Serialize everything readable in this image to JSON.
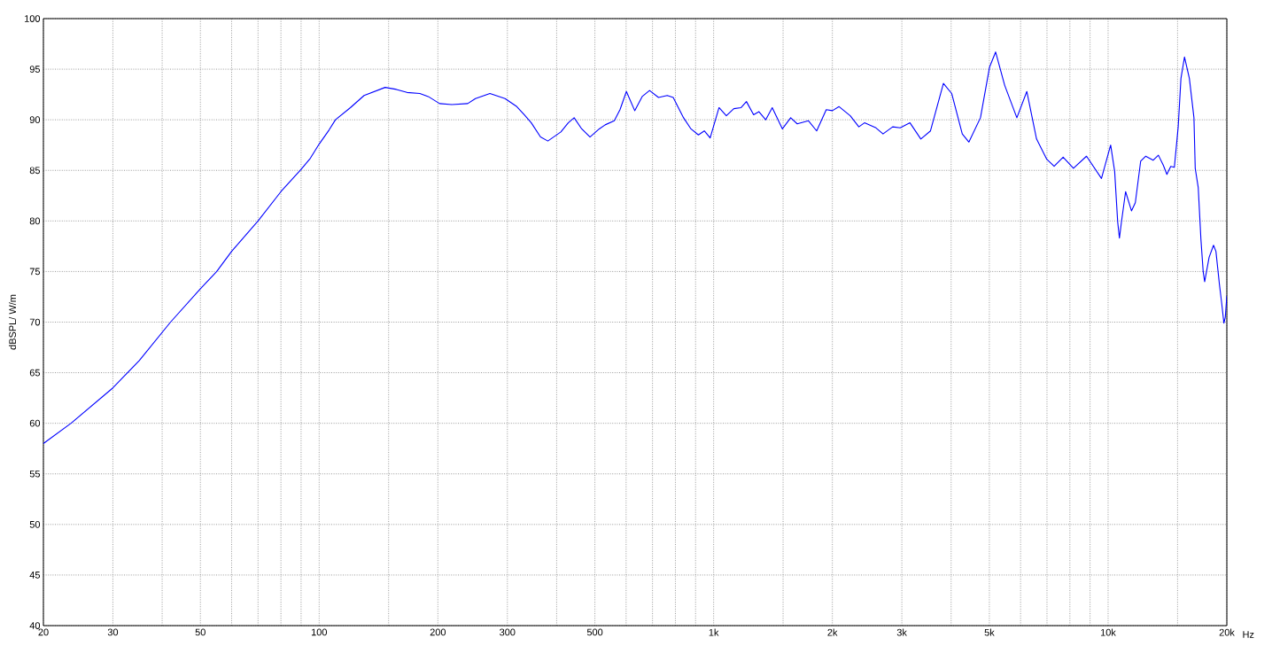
{
  "chart_data": {
    "type": "line",
    "xlabel": "Hz",
    "ylabel": "dBSPL/ W/m",
    "x": [
      20,
      23.5,
      30,
      35,
      42,
      50,
      55,
      60,
      70,
      80,
      90,
      95,
      100,
      106,
      110,
      120,
      130,
      147,
      157,
      167,
      180,
      189,
      202,
      217,
      238,
      249,
      271,
      296,
      317,
      331,
      345,
      364,
      380,
      410,
      428,
      443,
      463,
      486,
      513,
      531,
      560,
      579,
      601,
      631,
      659,
      688,
      725,
      763,
      790,
      839,
      876,
      915,
      947,
      980,
      1032,
      1077,
      1125,
      1174,
      1211,
      1263,
      1303,
      1355,
      1408,
      1494,
      1568,
      1629,
      1740,
      1825,
      1930,
      2000,
      2080,
      2220,
      2334,
      2412,
      2580,
      2688,
      2844,
      2971,
      3146,
      3352,
      3546,
      3824,
      4013,
      4269,
      4438,
      4747,
      5005,
      5186,
      5469,
      5871,
      6222,
      6586,
      6990,
      7298,
      7693,
      8169,
      8816,
      9620,
      10150,
      10390,
      10575,
      10683,
      10810,
      11075,
      11462,
      11722,
      12092,
      12449,
      13004,
      13413,
      13804,
      14093,
      14417,
      14721,
      15056,
      15300,
      15620,
      16070,
      16506,
      16630,
      16925,
      17190,
      17420,
      17572,
      18034,
      18506,
      18768,
      19158,
      19418,
      19660,
      19825,
      20000
    ],
    "series": [
      {
        "color": "#0000ff",
        "values": [
          58.0,
          60.0,
          63.5,
          66.2,
          70.0,
          73.3,
          75.0,
          77.0,
          80.0,
          82.9,
          85.1,
          86.2,
          87.6,
          89.0,
          90.0,
          91.2,
          92.4,
          93.2,
          93.0,
          92.7,
          92.6,
          92.3,
          91.6,
          91.5,
          91.6,
          92.1,
          92.6,
          92.1,
          91.3,
          90.5,
          89.7,
          88.3,
          87.9,
          88.8,
          89.7,
          90.2,
          89.1,
          88.3,
          89.1,
          89.5,
          89.9,
          91.0,
          92.8,
          90.9,
          92.3,
          92.9,
          92.2,
          92.4,
          92.2,
          90.2,
          89.1,
          88.5,
          88.9,
          88.2,
          91.2,
          90.4,
          91.1,
          91.2,
          91.8,
          90.5,
          90.8,
          90.0,
          91.2,
          89.1,
          90.2,
          89.6,
          89.9,
          88.9,
          91.0,
          90.9,
          91.3,
          90.4,
          89.3,
          89.7,
          89.2,
          88.6,
          89.3,
          89.2,
          89.7,
          88.1,
          88.9,
          93.6,
          92.6,
          88.6,
          87.8,
          90.2,
          95.2,
          96.7,
          93.4,
          90.2,
          92.8,
          88.1,
          86.1,
          85.4,
          86.3,
          85.2,
          86.4,
          84.2,
          87.5,
          84.9,
          79.9,
          78.3,
          79.9,
          82.9,
          81.0,
          81.8,
          85.9,
          86.4,
          86.0,
          86.5,
          85.5,
          84.6,
          85.4,
          85.3,
          89.3,
          94.1,
          96.2,
          94.1,
          90.2,
          85.2,
          83.3,
          78.2,
          75.0,
          74.0,
          76.4,
          77.6,
          77.0,
          73.7,
          71.8,
          69.9,
          70.5,
          72.6
        ]
      }
    ],
    "xlim": [
      20,
      20000
    ],
    "ylim": [
      40,
      100
    ],
    "xticks": [
      20,
      30,
      {
        "value": 40,
        "label": null
      },
      50,
      {
        "value": 60,
        "label": null
      },
      {
        "value": 70,
        "label": null
      },
      {
        "value": 80,
        "label": null
      },
      {
        "value": 90,
        "label": null
      },
      100,
      {
        "value": 150,
        "label": null
      },
      200,
      300,
      {
        "value": 400,
        "label": null
      },
      500,
      {
        "value": 600,
        "label": null
      },
      {
        "value": 700,
        "label": null
      },
      {
        "value": 800,
        "label": null
      },
      {
        "value": 900,
        "label": null
      },
      {
        "value": 1000,
        "label": "1k"
      },
      {
        "value": 1500,
        "label": null
      },
      {
        "value": 2000,
        "label": "2k"
      },
      {
        "value": 3000,
        "label": "3k"
      },
      {
        "value": 4000,
        "label": null
      },
      {
        "value": 5000,
        "label": "5k"
      },
      {
        "value": 6000,
        "label": null
      },
      {
        "value": 7000,
        "label": null
      },
      {
        "value": 8000,
        "label": null
      },
      {
        "value": 9000,
        "label": null
      },
      {
        "value": 10000,
        "label": "10k"
      },
      {
        "value": 15000,
        "label": null
      },
      {
        "value": 20000,
        "label": "20k"
      }
    ],
    "yticks": [
      40,
      45,
      50,
      55,
      60,
      65,
      70,
      75,
      80,
      85,
      90,
      95,
      100
    ],
    "log": "x",
    "grid": true
  }
}
